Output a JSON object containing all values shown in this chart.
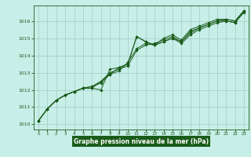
{
  "title": "Graphe pression niveau de la mer (hPa)",
  "background_color": "#c8eee8",
  "plot_bg_color": "#c8eee8",
  "grid_color": "#a0ccc0",
  "line_color": "#1a5c1a",
  "marker_color": "#1a5c1a",
  "label_color": "#1a5c1a",
  "bottom_bar_color": "#1a5c1a",
  "title_text_color": "#ffffff",
  "xlim": [
    -0.5,
    23.5
  ],
  "ylim": [
    1009.7,
    1016.9
  ],
  "yticks": [
    1010,
    1011,
    1012,
    1013,
    1014,
    1015,
    1016
  ],
  "xticks": [
    0,
    1,
    2,
    3,
    4,
    5,
    6,
    7,
    8,
    9,
    10,
    11,
    12,
    13,
    14,
    15,
    16,
    17,
    18,
    19,
    20,
    21,
    22,
    23
  ],
  "series": [
    [
      1010.2,
      1010.9,
      1011.4,
      1011.7,
      1011.9,
      1012.1,
      1012.1,
      1012.0,
      1013.2,
      1013.3,
      1013.5,
      1015.1,
      1014.8,
      1014.6,
      1014.8,
      1015.0,
      1014.8,
      1015.4,
      1015.6,
      1015.8,
      1016.0,
      1016.0,
      1015.9,
      1016.6
    ],
    [
      1010.2,
      1010.9,
      1011.4,
      1011.7,
      1011.9,
      1012.1,
      1012.1,
      1012.5,
      1012.9,
      1013.1,
      1013.6,
      1014.4,
      1014.7,
      1014.6,
      1014.8,
      1015.0,
      1014.7,
      1015.2,
      1015.5,
      1015.7,
      1015.9,
      1016.0,
      1015.9,
      1016.5
    ],
    [
      1010.2,
      1010.9,
      1011.4,
      1011.7,
      1011.9,
      1012.1,
      1012.2,
      1012.5,
      1013.0,
      1013.2,
      1013.4,
      1014.3,
      1014.6,
      1014.7,
      1014.9,
      1015.1,
      1014.8,
      1015.3,
      1015.6,
      1015.8,
      1016.0,
      1016.1,
      1016.0,
      1016.6
    ],
    [
      1010.2,
      1010.9,
      1011.4,
      1011.7,
      1011.9,
      1012.1,
      1012.2,
      1012.4,
      1012.9,
      1013.3,
      1013.5,
      1015.1,
      1014.8,
      1014.6,
      1015.0,
      1015.2,
      1014.9,
      1015.5,
      1015.7,
      1015.9,
      1016.1,
      1016.1,
      1016.0,
      1016.6
    ]
  ]
}
